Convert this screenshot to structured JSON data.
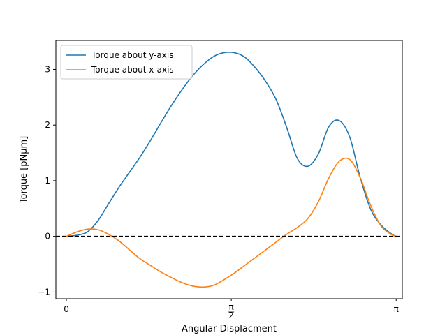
{
  "chart_data": {
    "type": "line",
    "title": "",
    "xlabel": "Angular Displacment",
    "ylabel": "Torque [pNμm]",
    "xlim": [
      -0.1,
      3.2
    ],
    "ylim": [
      -1.12,
      3.52
    ],
    "grid": false,
    "legend_position": "top-left",
    "x_ticks": [
      {
        "value": 0,
        "label": "0"
      },
      {
        "value": 1.5708,
        "label": "π/2"
      },
      {
        "value": 3.1416,
        "label": "π"
      }
    ],
    "y_ticks": [
      {
        "value": -1,
        "label": "−1"
      },
      {
        "value": 0,
        "label": "0"
      },
      {
        "value": 1,
        "label": "1"
      },
      {
        "value": 2,
        "label": "2"
      },
      {
        "value": 3,
        "label": "3"
      }
    ],
    "reference_line": {
      "y": 0,
      "style": "dashed",
      "color": "#000000"
    },
    "series": [
      {
        "name": "Torque about y-axis",
        "color": "#1f77b4",
        "x": [
          0,
          0.1,
          0.2,
          0.3,
          0.4,
          0.5,
          0.6,
          0.7,
          0.8,
          0.9,
          1.0,
          1.1,
          1.2,
          1.3,
          1.4,
          1.5,
          1.6,
          1.7,
          1.8,
          1.9,
          2.0,
          2.1,
          2.2,
          2.3,
          2.4,
          2.5,
          2.6,
          2.7,
          2.8,
          2.9,
          3.0,
          3.1,
          3.1416
        ],
        "y": [
          0.0,
          0.02,
          0.08,
          0.28,
          0.58,
          0.88,
          1.15,
          1.42,
          1.72,
          2.04,
          2.35,
          2.63,
          2.88,
          3.08,
          3.23,
          3.3,
          3.3,
          3.22,
          3.03,
          2.78,
          2.45,
          1.95,
          1.4,
          1.26,
          1.48,
          1.97,
          2.08,
          1.78,
          1.05,
          0.48,
          0.2,
          0.04,
          0.0
        ]
      },
      {
        "name": "Torque about x-axis",
        "color": "#ff7f0e",
        "x": [
          0,
          0.1,
          0.2,
          0.3,
          0.4,
          0.5,
          0.6,
          0.7,
          0.8,
          0.9,
          1.0,
          1.1,
          1.2,
          1.3,
          1.4,
          1.5,
          1.6,
          1.7,
          1.8,
          1.9,
          2.0,
          2.1,
          2.2,
          2.3,
          2.4,
          2.5,
          2.6,
          2.7,
          2.8,
          2.9,
          3.0,
          3.1,
          3.1416
        ],
        "y": [
          0.0,
          0.08,
          0.13,
          0.12,
          0.04,
          -0.08,
          -0.24,
          -0.4,
          -0.52,
          -0.64,
          -0.74,
          -0.83,
          -0.89,
          -0.91,
          -0.88,
          -0.78,
          -0.66,
          -0.52,
          -0.38,
          -0.24,
          -0.1,
          0.04,
          0.16,
          0.32,
          0.62,
          1.05,
          1.35,
          1.38,
          1.05,
          0.55,
          0.18,
          0.03,
          0.0
        ]
      }
    ]
  }
}
